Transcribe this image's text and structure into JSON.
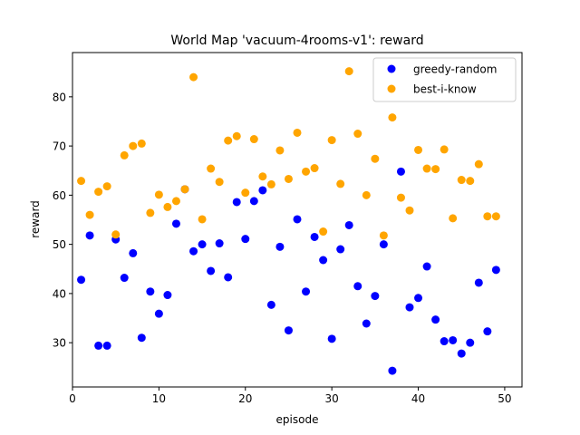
{
  "chart_data": {
    "type": "scatter",
    "title": "World Map 'vacuum-4rooms-v1': reward",
    "xlabel": "episode",
    "ylabel": "reward",
    "xlim": [
      0,
      52
    ],
    "ylim": [
      21,
      89
    ],
    "xticks": [
      0,
      10,
      20,
      30,
      40,
      50
    ],
    "yticks": [
      30,
      40,
      50,
      60,
      70,
      80
    ],
    "grid": false,
    "legend_position": "top-right",
    "series": [
      {
        "name": "greedy-random",
        "color": "#0000ff",
        "x": [
          1,
          2,
          3,
          4,
          5,
          6,
          7,
          8,
          9,
          10,
          11,
          12,
          13,
          14,
          15,
          16,
          17,
          18,
          19,
          20,
          21,
          22,
          23,
          24,
          25,
          26,
          27,
          28,
          29,
          30,
          31,
          32,
          33,
          34,
          35,
          36,
          37,
          38,
          39,
          40,
          41,
          42,
          43,
          44,
          45,
          46,
          47,
          48,
          49
        ],
        "y": [
          42.8,
          51.8,
          29.4,
          29.4,
          51.0,
          43.2,
          48.2,
          31.0,
          40.4,
          35.9,
          39.7,
          54.2,
          61.2,
          48.6,
          50.0,
          44.6,
          50.2,
          43.3,
          58.6,
          51.1,
          58.8,
          61.0,
          37.7,
          49.5,
          32.5,
          55.1,
          40.4,
          51.5,
          46.8,
          30.8,
          49.0,
          53.9,
          41.5,
          33.9,
          39.5,
          50.0,
          24.3,
          64.8,
          37.2,
          39.1,
          45.5,
          34.7,
          30.3,
          30.5,
          27.8,
          30.0,
          42.2,
          32.3,
          44.8
        ]
      },
      {
        "name": "best-i-know",
        "color": "#ffa500",
        "x": [
          1,
          2,
          3,
          4,
          5,
          6,
          7,
          8,
          9,
          10,
          11,
          12,
          13,
          14,
          15,
          16,
          17,
          18,
          19,
          20,
          21,
          22,
          23,
          24,
          25,
          26,
          27,
          28,
          29,
          30,
          31,
          32,
          33,
          34,
          35,
          36,
          37,
          38,
          39,
          40,
          41,
          42,
          43,
          44,
          45,
          46,
          47,
          48,
          49
        ],
        "y": [
          62.9,
          56.0,
          60.7,
          61.8,
          52.0,
          68.1,
          70.0,
          70.5,
          56.4,
          60.1,
          57.6,
          58.8,
          61.2,
          84.0,
          55.1,
          65.4,
          62.7,
          71.1,
          72.0,
          60.5,
          71.4,
          63.8,
          62.2,
          69.1,
          63.3,
          72.7,
          64.8,
          65.5,
          52.6,
          71.2,
          62.3,
          85.2,
          72.5,
          60.0,
          67.4,
          51.8,
          75.8,
          59.5,
          56.9,
          69.2,
          65.4,
          65.3,
          69.3,
          55.3,
          63.1,
          62.9,
          66.3,
          55.7,
          55.7
        ]
      }
    ]
  }
}
